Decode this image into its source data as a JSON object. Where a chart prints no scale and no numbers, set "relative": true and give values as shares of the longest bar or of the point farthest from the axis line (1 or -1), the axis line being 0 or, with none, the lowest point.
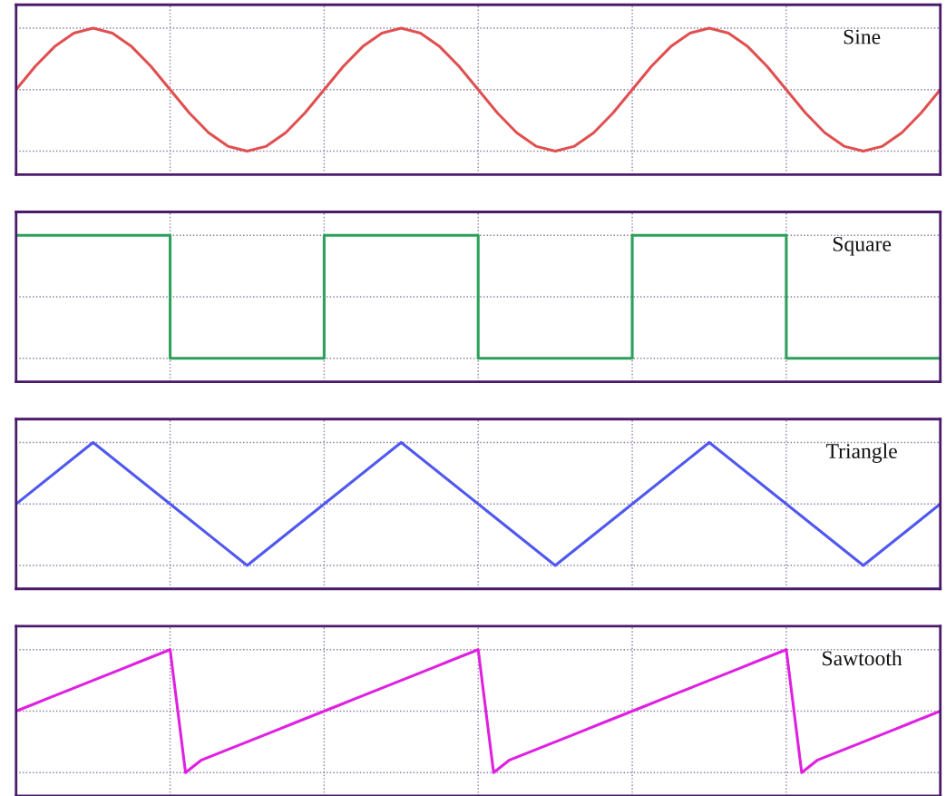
{
  "chart_data": [
    {
      "type": "line",
      "relative": true,
      "grid": true,
      "categories": [
        null,
        null,
        null,
        null,
        null,
        null,
        null,
        null,
        null,
        null,
        null,
        null,
        null,
        null,
        null,
        null,
        null,
        null,
        null,
        null,
        null,
        null,
        null,
        null,
        null,
        null,
        null,
        null,
        null,
        null,
        null,
        null,
        null,
        null,
        null,
        null,
        null,
        null,
        null,
        null,
        null,
        null,
        null,
        null,
        null,
        null,
        null,
        null,
        null
      ],
      "series": [
        {
          "name": "Sine",
          "color": "#e05050",
          "values": [
            0.5,
            0.69,
            0.85,
            0.96,
            1,
            0.96,
            0.85,
            0.69,
            0.5,
            0.31,
            0.15,
            0.04,
            0,
            0.04,
            0.15,
            0.31,
            0.5,
            0.69,
            0.85,
            0.96,
            1,
            0.96,
            0.85,
            0.69,
            0.5,
            0.31,
            0.15,
            0.04,
            0,
            0.04,
            0.15,
            0.31,
            0.5,
            0.69,
            0.85,
            0.96,
            1,
            0.96,
            0.85,
            0.69,
            0.5,
            0.31,
            0.15,
            0.04,
            0,
            0.04,
            0.15,
            0.31,
            0.5
          ]
        }
      ]
    },
    {
      "type": "step",
      "relative": true,
      "grid": true,
      "categories": [
        null,
        null,
        null,
        null,
        null,
        null,
        null
      ],
      "series": [
        {
          "name": "Square",
          "color": "#2ca05a",
          "values": [
            1,
            0,
            1,
            0,
            1,
            0,
            0
          ]
        }
      ]
    },
    {
      "type": "line",
      "relative": true,
      "grid": true,
      "categories": [
        null,
        null,
        null,
        null,
        null,
        null,
        null,
        null,
        null,
        null,
        null,
        null,
        null
      ],
      "series": [
        {
          "name": "Triangle",
          "color": "#5058f0",
          "values": [
            0.5,
            1,
            0.5,
            0,
            0.5,
            1,
            0.5,
            0,
            0.5,
            1,
            0.5,
            0,
            0.5
          ]
        }
      ]
    },
    {
      "type": "line",
      "relative": true,
      "grid": true,
      "categories": [
        null,
        null,
        null,
        null,
        null,
        null,
        null,
        null,
        null,
        null,
        null,
        null,
        null,
        null,
        null,
        null,
        null,
        null,
        null,
        null,
        null,
        null,
        null,
        null,
        null,
        null,
        null,
        null,
        null,
        null,
        null,
        null,
        null,
        null,
        null,
        null,
        null,
        null,
        null,
        null,
        null,
        null,
        null,
        null,
        null,
        null,
        null,
        null,
        null,
        null,
        null,
        null,
        null,
        null,
        null,
        null,
        null,
        null,
        null,
        null,
        null
      ],
      "series": [
        {
          "name": "Sawtooth",
          "color": "#e020e0",
          "values": [
            0.5,
            0.55,
            0.6,
            0.65,
            0.7,
            0.75,
            0.8,
            0.85,
            0.9,
            0.95,
            1,
            0,
            0.1,
            0.15,
            0.2,
            0.25,
            0.3,
            0.35,
            0.4,
            0.45,
            0.5,
            0.55,
            0.6,
            0.65,
            0.7,
            0.75,
            0.8,
            0.85,
            0.9,
            0.95,
            1,
            0,
            0.1,
            0.15,
            0.2,
            0.25,
            0.3,
            0.35,
            0.4,
            0.45,
            0.5,
            0.55,
            0.6,
            0.65,
            0.7,
            0.75,
            0.8,
            0.85,
            0.9,
            0.95,
            1,
            0,
            0.1,
            0.15,
            0.2,
            0.25,
            0.3,
            0.35,
            0.4,
            0.45,
            0.5
          ]
        }
      ]
    }
  ]
}
